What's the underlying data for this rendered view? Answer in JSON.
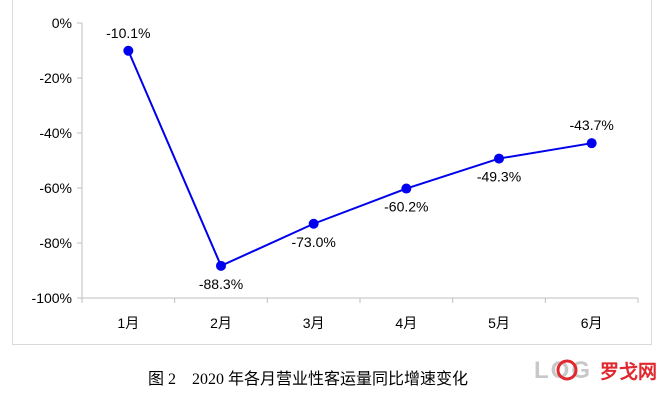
{
  "caption": "图 2    2020 年各月营业性客运量同比增速变化",
  "watermark": {
    "text": "罗戈网",
    "logo_letters": "LOG"
  },
  "colors": {
    "series": "#0000ee",
    "axis": "#bfbfbf",
    "text": "#000000",
    "watermark_red": "#e0282e"
  },
  "chart_data": {
    "type": "line",
    "categories": [
      "1月",
      "2月",
      "3月",
      "4月",
      "5月",
      "6月"
    ],
    "series": [
      {
        "values": [
          -10.1,
          -88.3,
          -73.0,
          -60.2,
          -49.3,
          -43.7
        ],
        "data_labels": [
          "-10.1%",
          "-88.3%",
          "-73.0%",
          "-60.2%",
          "-49.3%",
          "-43.7%"
        ]
      }
    ],
    "ylim": [
      -100,
      0
    ],
    "yticks": [
      0,
      -20,
      -40,
      -60,
      -80,
      -100
    ],
    "ytick_labels": [
      "0%",
      "-20%",
      "-40%",
      "-60%",
      "-80%",
      "-100%"
    ],
    "grid": false,
    "legend": "none"
  }
}
